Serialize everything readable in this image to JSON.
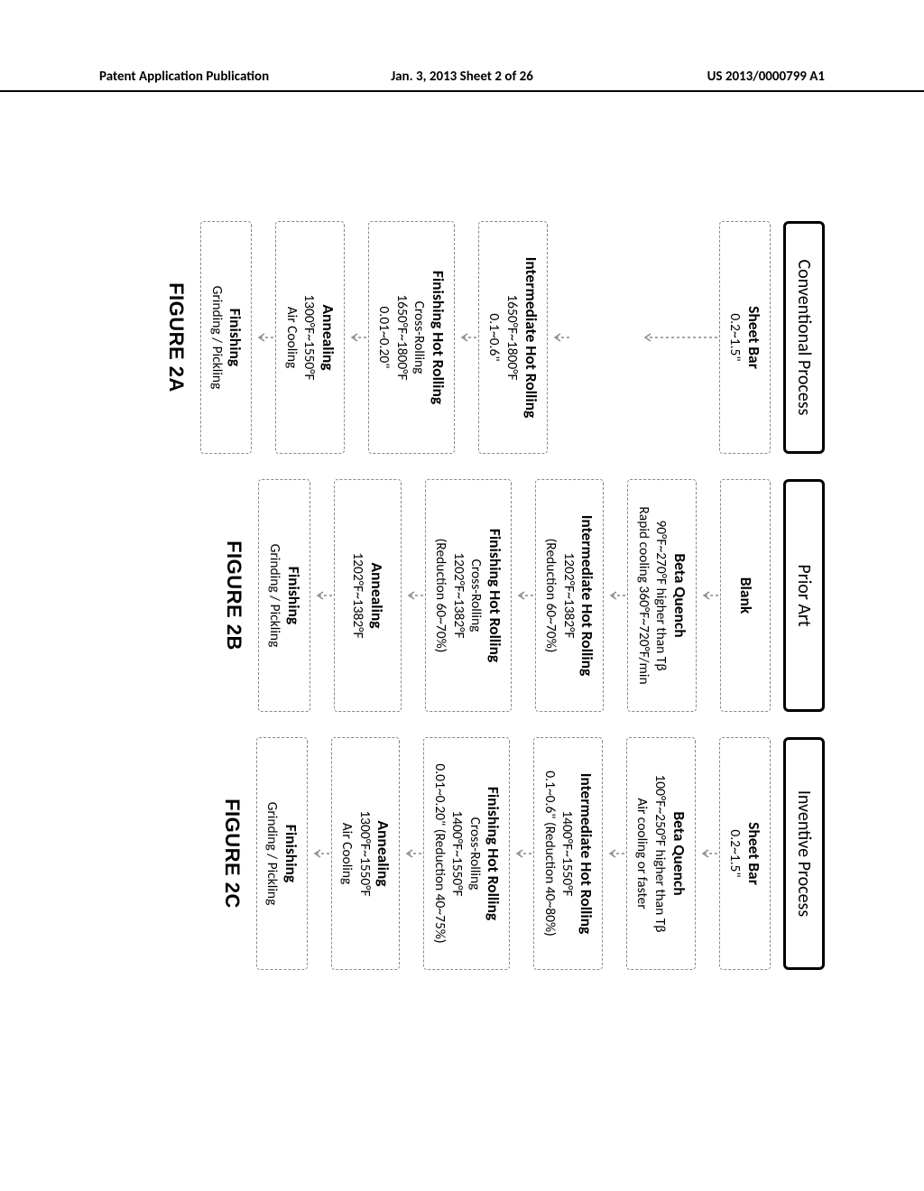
{
  "header": {
    "left": "Patent Application Publication",
    "center": "Jan. 3, 2013  Sheet 2 of 26",
    "right": "US 2013/0000799 A1"
  },
  "arrow": {
    "color": "#888888",
    "dash": "3,3"
  },
  "columns": [
    {
      "title": "Conventional Process",
      "figure_label": "FIGURE 2A",
      "steps": [
        {
          "title": "Sheet Bar",
          "lines": [
            "0.2~1.5\""
          ]
        },
        {
          "spacer": true
        },
        {
          "title": "Intermediate Hot Rolling",
          "lines": [
            "1650°F~1800°F",
            "0.1~0.6\""
          ]
        },
        {
          "title": "Finishing Hot Rolling",
          "lines": [
            "Cross-Rolling",
            "1650°F~1800°F",
            "0.01~0.20\""
          ]
        },
        {
          "title": "Annealing",
          "lines": [
            "1300°F~1550°F",
            "Air Cooling"
          ]
        },
        {
          "title": "Finishing",
          "lines": [
            "Grinding / Pickling"
          ]
        }
      ],
      "arrows": [
        "tall",
        "short",
        "short",
        "short",
        "short"
      ]
    },
    {
      "title": "Prior Art",
      "figure_label": "FIGURE 2B",
      "steps": [
        {
          "title": "Blank",
          "lines": [],
          "pad": true
        },
        {
          "title": "Beta Quench",
          "lines": [
            "90°F~270°F higher than Tβ",
            "Rapid cooling 360°F~720°F/min"
          ]
        },
        {
          "title": "Intermediate Hot Rolling",
          "lines": [
            "1202°F~1382°F",
            "(Reduction 60~70%)"
          ]
        },
        {
          "title": "Finishing Hot Rolling",
          "lines": [
            "Cross-Rolling",
            "1202°F~1382°F",
            "(Reduction 60~70%)"
          ]
        },
        {
          "title": "Annealing",
          "lines": [
            "1202°F~1382°F"
          ],
          "pad": true
        },
        {
          "title": "Finishing",
          "lines": [
            "Grinding / Pickling"
          ]
        }
      ],
      "arrows": [
        "short",
        "short",
        "short",
        "short",
        "short"
      ]
    },
    {
      "title": "Inventive Process",
      "figure_label": "FIGURE 2C",
      "steps": [
        {
          "title": "Sheet Bar",
          "lines": [
            "0.2~1.5\""
          ]
        },
        {
          "title": "Beta Quench",
          "lines": [
            "100°F~250°F higher than Tβ",
            "Air cooling or faster"
          ]
        },
        {
          "title": "Intermediate Hot Rolling",
          "lines": [
            "1400°F~1550°F",
            "0.1~0.6\" (Reduction 40~80%)"
          ]
        },
        {
          "title": "Finishing Hot Rolling",
          "lines": [
            "Cross-Rolling",
            "1400°F~1550°F",
            "0.01~0.20\" (Reduction 40~75%)"
          ]
        },
        {
          "title": "Annealing",
          "lines": [
            "1300°F~1550°F",
            "Air Cooling"
          ]
        },
        {
          "title": "Finishing",
          "lines": [
            "Grinding / Pickling"
          ]
        }
      ],
      "arrows": [
        "short",
        "short",
        "short",
        "short",
        "short"
      ]
    }
  ]
}
